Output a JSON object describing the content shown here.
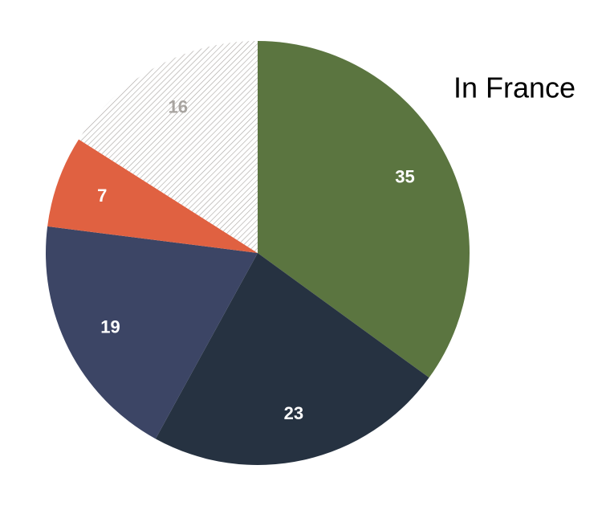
{
  "chart_data": {
    "type": "pie",
    "title": "In France",
    "values": [
      35,
      23,
      19,
      7,
      16
    ],
    "colors": [
      "#5b7540",
      "#263241",
      "#3c4565",
      "#e06141",
      "#a8a4a0"
    ],
    "hatched": [
      false,
      false,
      false,
      false,
      true
    ],
    "label_colors": [
      "#ffffff",
      "#ffffff",
      "#ffffff",
      "#ffffff",
      "#a8a4a0"
    ]
  }
}
